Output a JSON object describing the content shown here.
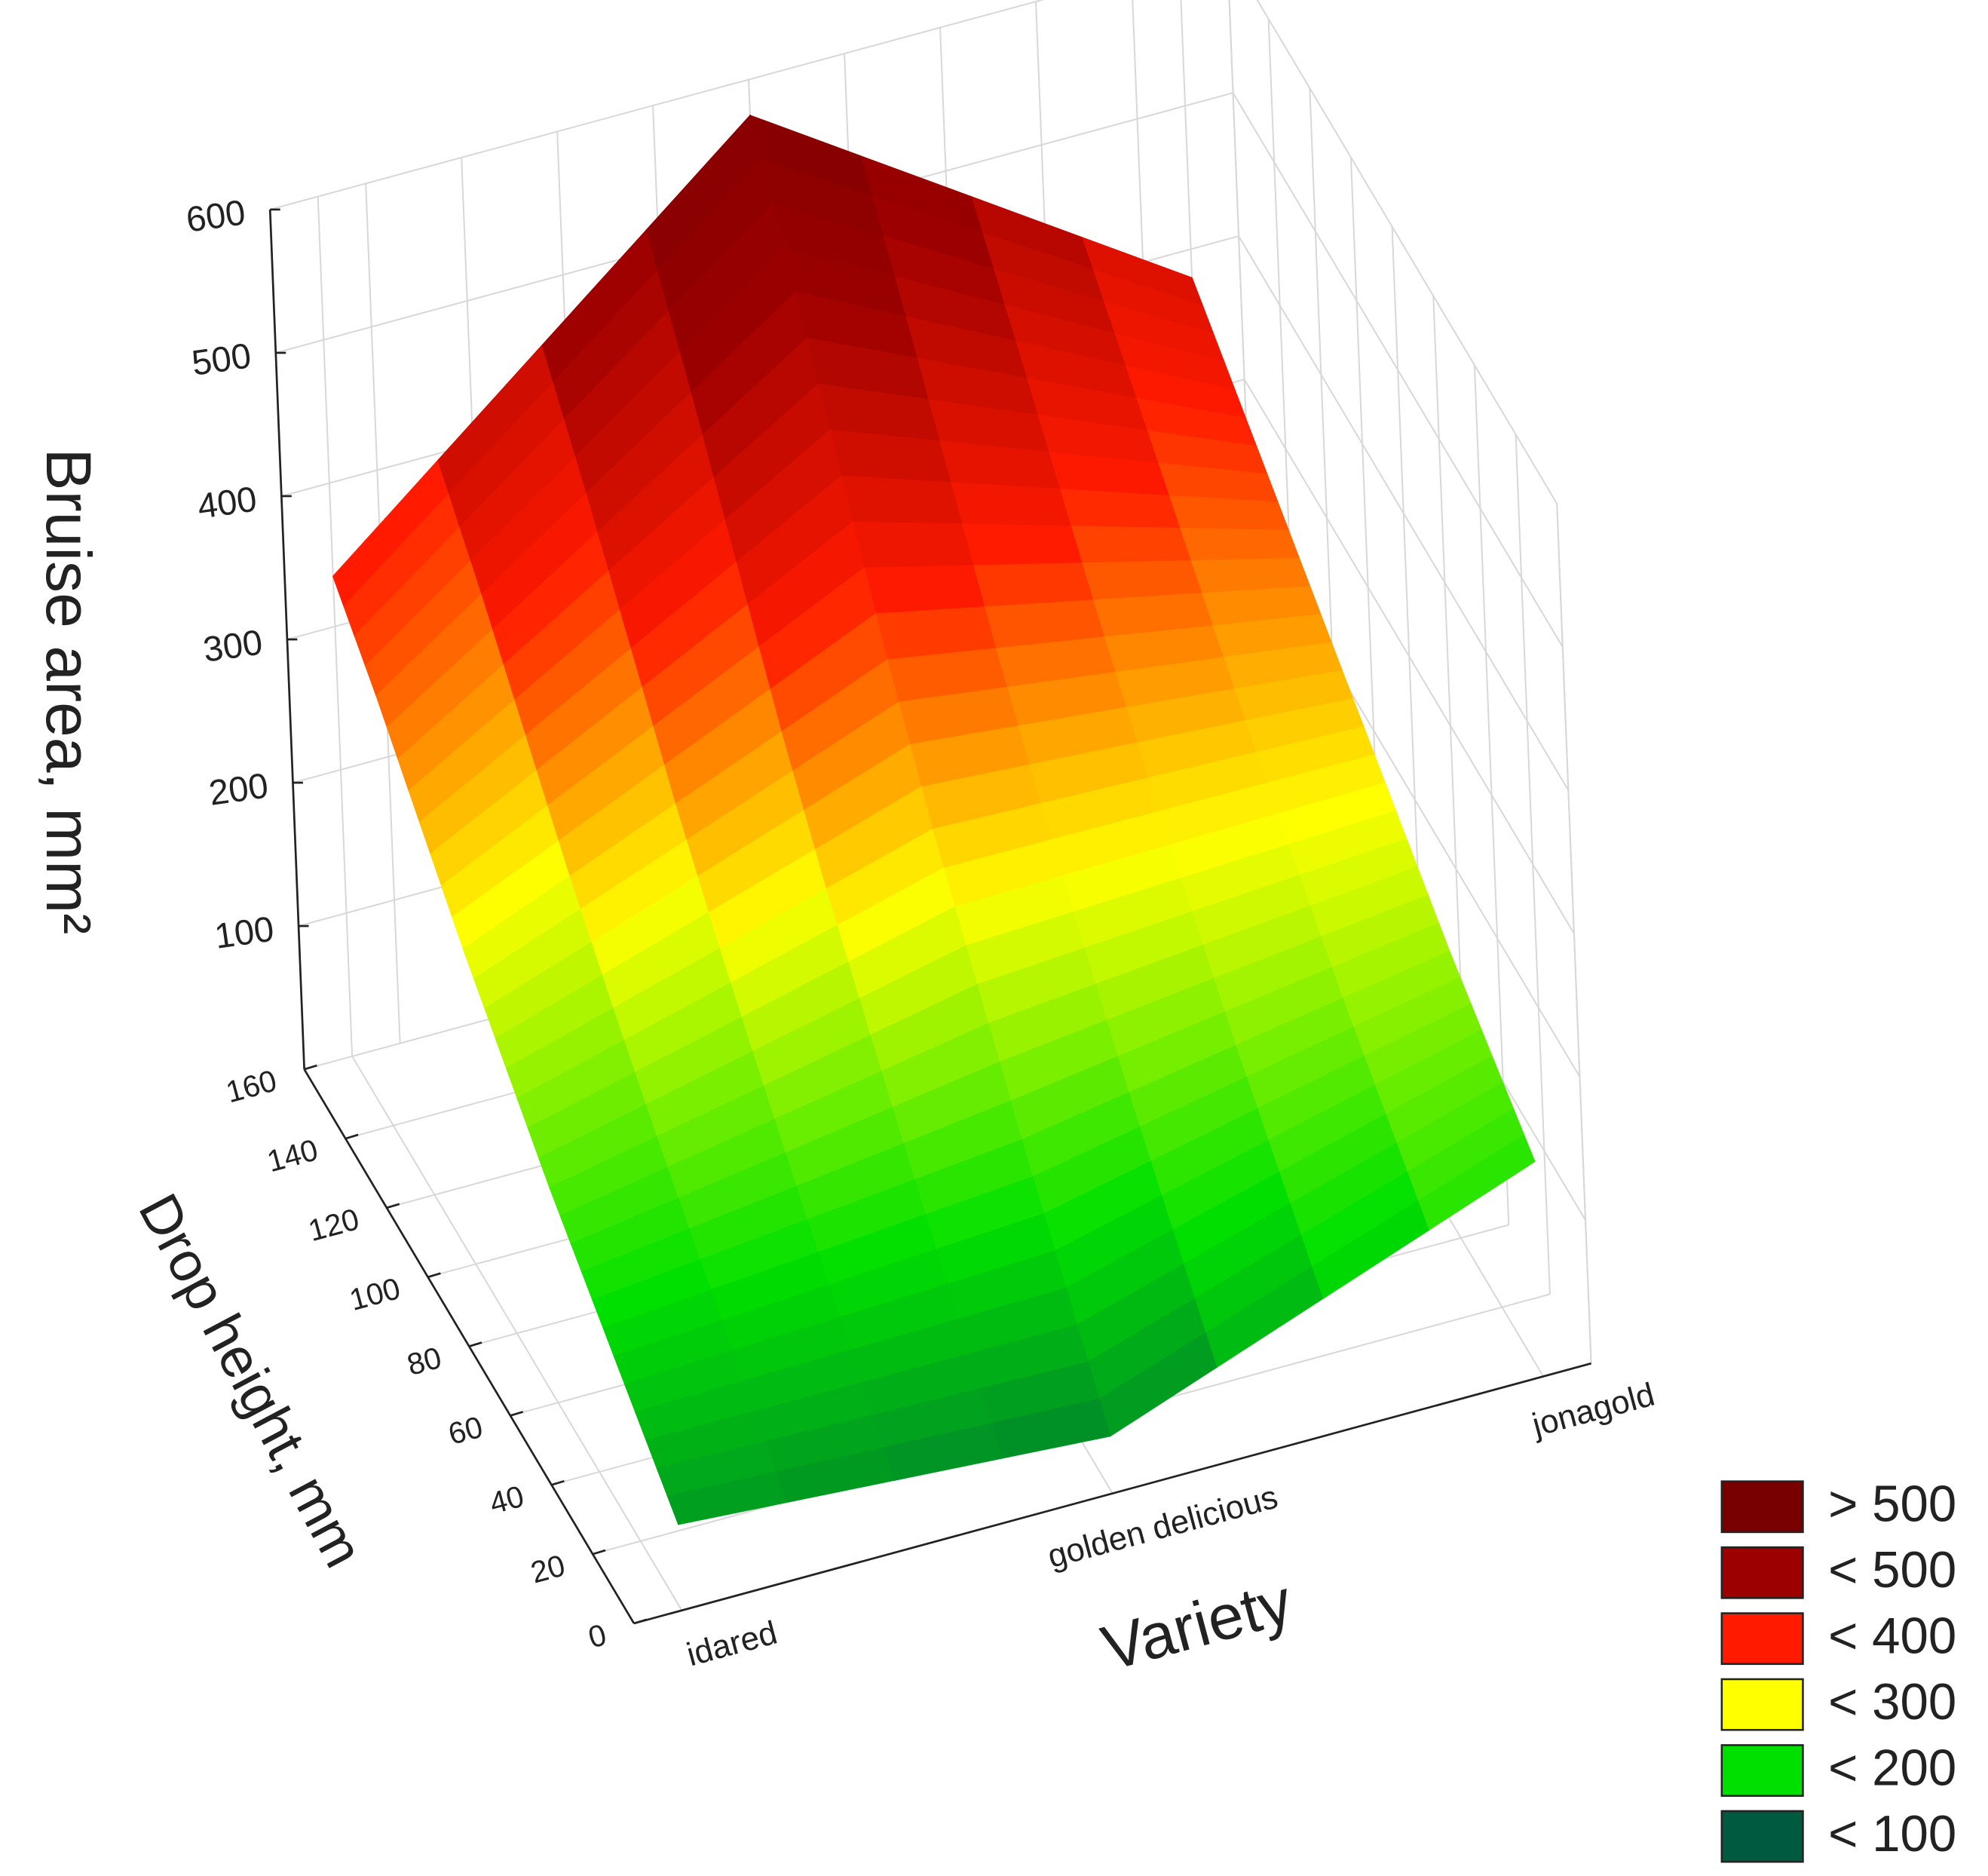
{
  "chart_data": {
    "type": "surface",
    "x_label": "Variety",
    "y_label": "Drop height, mm",
    "z_label": "Bruise area, mm²",
    "categories": [
      "idared",
      "golden delicious",
      "jonagold"
    ],
    "y": [
      0,
      20,
      40,
      60,
      80,
      100,
      120,
      140,
      160
    ],
    "z": [
      [
        60,
        90,
        120,
        150,
        185,
        220,
        260,
        300,
        335
      ],
      [
        40,
        95,
        150,
        210,
        270,
        340,
        420,
        500,
        575
      ],
      [
        150,
        175,
        200,
        230,
        260,
        290,
        320,
        350,
        380
      ]
    ],
    "ylim": [
      0,
      160
    ],
    "yticks": [
      0,
      20,
      40,
      60,
      80,
      100,
      120,
      140,
      160
    ],
    "zlim": [
      0,
      600
    ],
    "zticks": [
      100,
      200,
      300,
      400,
      500,
      600
    ],
    "grid": true,
    "legend_position": "lower right",
    "legend": [
      {
        "label": "> 500",
        "color": "#780000"
      },
      {
        "label": "< 500",
        "color": "#9c0000"
      },
      {
        "label": "< 400",
        "color": "#ff1a00"
      },
      {
        "label": "< 300",
        "color": "#ffff00"
      },
      {
        "label": "< 200",
        "color": "#00e000"
      },
      {
        "label": "< 100",
        "color": "#005a40"
      }
    ]
  }
}
